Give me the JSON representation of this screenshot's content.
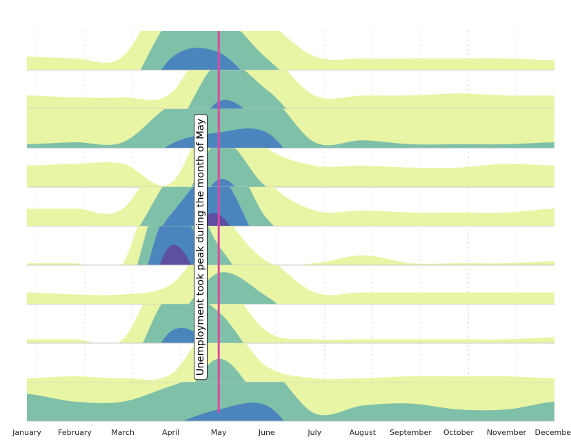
{
  "chart_data": {
    "type": "area",
    "subtype": "horizon",
    "categories": [
      "January",
      "February",
      "March",
      "April",
      "May",
      "June",
      "July",
      "August",
      "September",
      "October",
      "November",
      "December"
    ],
    "band_colors": [
      "#e8f5a4",
      "#7fc1a8",
      "#4a86bd",
      "#5e4fa2"
    ],
    "highlight_color": "#e0489e",
    "highlight_category": "May",
    "annotation": "Unemployment took peak during the month of May",
    "grid": "vertical dotted",
    "series": [
      {
        "values": [
          0.35,
          0.3,
          0.35,
          2.3,
          2.45,
          1.3,
          0.35,
          0.3,
          0.3,
          0.3,
          0.3,
          0.25
        ]
      },
      {
        "values": [
          0.35,
          0.3,
          0.3,
          0.4,
          2.2,
          1.5,
          0.35,
          0.35,
          0.35,
          0.4,
          0.35,
          0.35
        ]
      },
      {
        "values": [
          1.1,
          1.15,
          1.15,
          2.1,
          2.4,
          2.4,
          1.15,
          1.2,
          1.1,
          1.1,
          1.1,
          1.15
        ]
      },
      {
        "values": [
          0.55,
          0.6,
          0.6,
          0.1,
          2.2,
          1.0,
          0.55,
          0.55,
          0.5,
          0.5,
          0.6,
          0.55
        ]
      },
      {
        "values": [
          0.45,
          0.45,
          0.45,
          2.3,
          3.3,
          1.2,
          0.4,
          0.4,
          0.35,
          0.35,
          0.35,
          0.45
        ]
      },
      {
        "values": [
          0.05,
          0.05,
          0.05,
          3.5,
          1.5,
          0.1,
          0.05,
          0.25,
          0.05,
          0.05,
          0.05,
          0.1
        ]
      },
      {
        "values": [
          0.3,
          0.25,
          0.25,
          0.5,
          1.8,
          1.2,
          0.3,
          0.3,
          0.3,
          0.3,
          0.3,
          0.3
        ]
      },
      {
        "values": [
          0.1,
          0.1,
          0.1,
          2.3,
          1.8,
          0.3,
          0.1,
          0.1,
          0.1,
          0.1,
          0.1,
          0.15
        ]
      },
      {
        "values": [
          0.1,
          0.15,
          0.1,
          0.2,
          1.6,
          0.4,
          0.1,
          0.1,
          0.15,
          0.15,
          0.15,
          0.1
        ]
      },
      {
        "values": [
          1.7,
          1.5,
          1.5,
          1.9,
          2.3,
          2.4,
          1.2,
          1.4,
          1.45,
          1.3,
          1.3,
          1.5
        ]
      }
    ]
  }
}
